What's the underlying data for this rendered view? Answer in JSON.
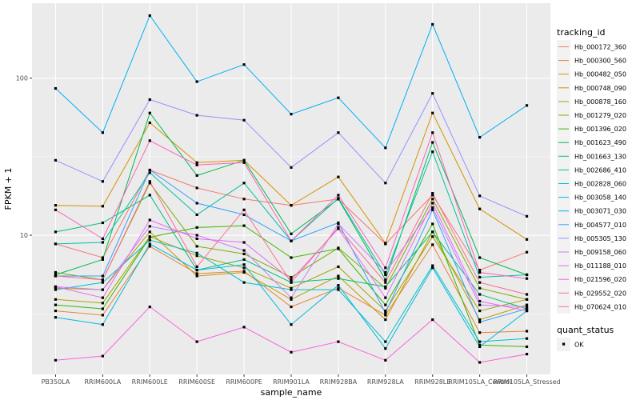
{
  "chart_data": {
    "type": "line",
    "xlabel": "sample_name",
    "ylabel": "FPKM + 1",
    "y_scale": "log10",
    "ylim": [
      1.3,
      300
    ],
    "y_ticks": [
      10,
      100
    ],
    "y_tick_labels": [
      "10",
      "100"
    ],
    "grid": true,
    "legend_placement": "right",
    "categories": [
      "PB350LA",
      "RRIM600LA",
      "RRIM600LE",
      "RRIM600SE",
      "RRIM600PE",
      "RRIM901LA",
      "RRIM928BA",
      "RRIM928LA",
      "RRIM928LE",
      "RRIM105LA_Control",
      "RRIM105LA_Stressed"
    ],
    "legend_title": "tracking_id",
    "shape_legend_title": "quant_status",
    "shape_legend_items": [
      "OK"
    ],
    "series": [
      {
        "name": "Hb_000172_360",
        "color": "#F8766D",
        "values": [
          8.8,
          7.2,
          26,
          20,
          17,
          15.5,
          17,
          8.8,
          18,
          6,
          7.8
        ]
      },
      {
        "name": "Hb_000300_560",
        "color": "#EA8331",
        "values": [
          3.3,
          3.1,
          8.5,
          5.7,
          5.9,
          3.5,
          4.6,
          3.1,
          8.7,
          2.4,
          2.45
        ]
      },
      {
        "name": "Hb_000482_050",
        "color": "#D89000",
        "values": [
          15.5,
          15.3,
          52,
          29,
          30,
          15.5,
          23.5,
          8.9,
          60,
          14.7,
          9.4
        ]
      },
      {
        "name": "Hb_000748_090",
        "color": "#C09B00",
        "values": [
          4.6,
          4.5,
          10.5,
          5.5,
          5.8,
          3.9,
          5.5,
          2.9,
          10.5,
          2.9,
          3.6
        ]
      },
      {
        "name": "Hb_000878_160",
        "color": "#A3A500",
        "values": [
          3.9,
          3.7,
          9.8,
          7.4,
          6.2,
          4.6,
          6.3,
          3.3,
          9.8,
          3.3,
          3.9
        ]
      },
      {
        "name": "Hb_001279_020",
        "color": "#7CAE00",
        "values": [
          5.8,
          5.2,
          21.5,
          8.5,
          7.6,
          5.4,
          8.3,
          4.6,
          17,
          4.6,
          3.9
        ]
      },
      {
        "name": "Hb_001396_020",
        "color": "#39B600",
        "values": [
          3.6,
          3.4,
          9.7,
          11.2,
          11.5,
          7.2,
          8.2,
          3.6,
          11.8,
          2.0,
          1.95
        ]
      },
      {
        "name": "Hb_001623_490",
        "color": "#00BB4E",
        "values": [
          5.6,
          7.0,
          60,
          24,
          30,
          10.2,
          17,
          5.2,
          39,
          7.2,
          5.6
        ]
      },
      {
        "name": "Hb_001663_130",
        "color": "#00BF7D",
        "values": [
          10.5,
          12,
          18,
          6.0,
          7.0,
          5.0,
          5.3,
          4.7,
          10.5,
          4.2,
          3.4
        ]
      },
      {
        "name": "Hb_002686_410",
        "color": "#00C1A3",
        "values": [
          8.8,
          9.0,
          25,
          13.5,
          21.5,
          9.2,
          17.2,
          5.6,
          34,
          5.4,
          5.6
        ]
      },
      {
        "name": "Hb_002828_060",
        "color": "#00BFC4",
        "values": [
          4.5,
          5.0,
          9.3,
          7.7,
          5.0,
          4.5,
          4.5,
          2.1,
          6.4,
          2.1,
          2.2
        ]
      },
      {
        "name": "Hb_003058_140",
        "color": "#00BAE0",
        "values": [
          3.0,
          2.7,
          8.8,
          6.0,
          6.5,
          2.7,
          4.8,
          1.9,
          6.2,
          1.95,
          3.3
        ]
      },
      {
        "name": "Hb_003071_030",
        "color": "#00B0F6",
        "values": [
          86,
          45,
          250,
          95,
          122,
          59,
          75,
          36,
          220,
          42,
          67
        ]
      },
      {
        "name": "Hb_004577_010",
        "color": "#35A2FF",
        "values": [
          5.5,
          5.5,
          26,
          16,
          13.5,
          9.2,
          12,
          3.2,
          14.5,
          2.8,
          3.4
        ]
      },
      {
        "name": "Hb_005305_130",
        "color": "#9590FF",
        "values": [
          30,
          22,
          73,
          58,
          54,
          27,
          45,
          21.5,
          80,
          17.8,
          13.2
        ]
      },
      {
        "name": "Hb_009158_060",
        "color": "#C77CFF",
        "values": [
          4.7,
          4.5,
          11.4,
          10,
          8.0,
          4.0,
          11.8,
          5.8,
          15,
          3.6,
          3.5
        ]
      },
      {
        "name": "Hb_011188_010",
        "color": "#E76BF3",
        "values": [
          4.7,
          4.0,
          12.5,
          9.5,
          9.0,
          5.2,
          11.0,
          4.0,
          16,
          3.8,
          3.3
        ]
      },
      {
        "name": "Hb_021596_020",
        "color": "#FA62DB",
        "values": [
          1.6,
          1.7,
          3.5,
          2.1,
          2.6,
          1.8,
          2.1,
          1.6,
          2.9,
          1.55,
          1.75
        ]
      },
      {
        "name": "Hb_029552_020",
        "color": "#FF62BC",
        "values": [
          14.5,
          9.5,
          40,
          28,
          29,
          9.2,
          18,
          6.2,
          45,
          5.8,
          5.3
        ]
      },
      {
        "name": "Hb_070624_010",
        "color": "#FF6C91",
        "values": [
          5.5,
          5.2,
          22,
          6.3,
          14.5,
          5.0,
          11.2,
          5.0,
          18.5,
          5.0,
          4.2
        ]
      }
    ]
  }
}
